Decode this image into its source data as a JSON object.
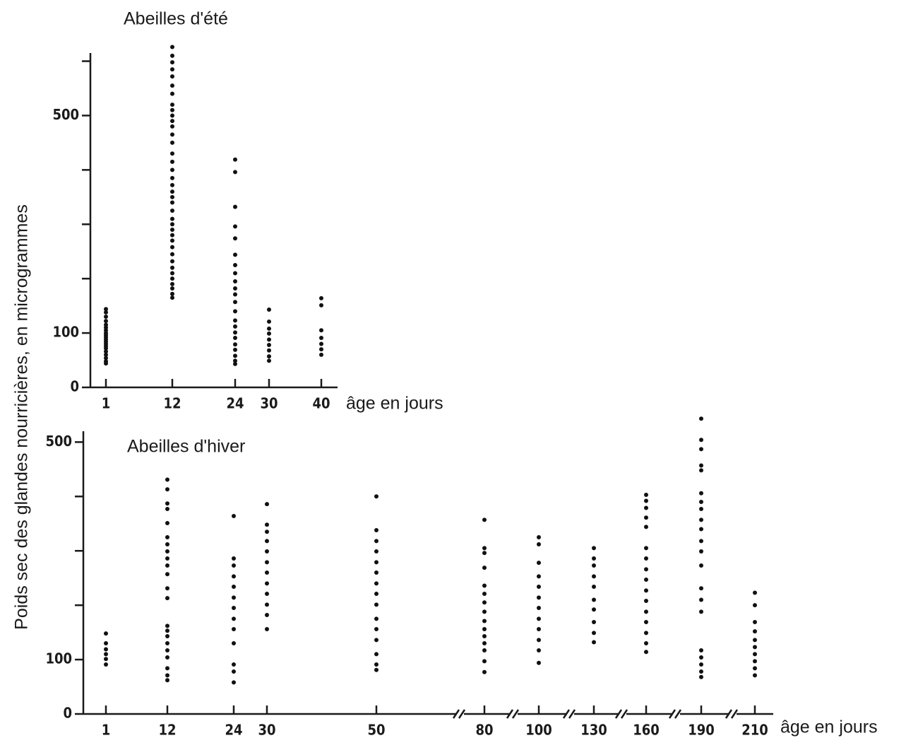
{
  "chart_data": [
    {
      "type": "scatter",
      "title": "Abeilles d'été",
      "ylabel": "Poids sec des glandes nourricières, en microgrammes",
      "xlabel": "âge en jours",
      "categories": [
        "1",
        "12",
        "24",
        "30",
        "40"
      ],
      "values": [
        [
          144,
          138,
          130,
          122,
          115,
          110,
          105,
          100,
          96,
          92,
          88,
          84,
          80,
          76,
          72,
          66,
          60,
          54,
          48,
          44
        ],
        [
          626,
          610,
          598,
          585,
          572,
          555,
          540,
          520,
          510,
          500,
          490,
          480,
          465,
          450,
          430,
          415,
          400,
          385,
          372,
          360,
          350,
          340,
          325,
          310,
          300,
          290,
          280,
          270,
          258,
          245,
          232,
          220,
          210,
          200,
          190,
          182,
          172,
          165
        ],
        [
          419,
          396,
          332,
          296,
          274,
          244,
          225,
          210,
          195,
          182,
          171,
          157,
          140,
          123,
          112,
          101,
          91,
          79,
          69,
          58,
          49,
          43
        ],
        [
          143,
          121,
          108,
          99,
          88,
          78,
          68,
          57,
          49
        ],
        [
          164,
          151,
          105,
          91,
          80,
          70,
          60
        ]
      ],
      "color": "#111111",
      "ylim": [
        0,
        615
      ],
      "yticks": [
        0,
        100,
        500
      ],
      "minor_yticks": [
        200,
        300,
        400,
        600
      ]
    },
    {
      "type": "scatter",
      "title": "Abeilles d'hiver",
      "xlabel": "âge en jours",
      "categories": [
        "1",
        "12",
        "24",
        "30",
        "50",
        "80",
        "100",
        "130",
        "160",
        "190",
        "210"
      ],
      "values": [
        [
          148,
          130,
          119,
          110,
          101,
          91
        ],
        [
          431,
          413,
          387,
          377,
          351,
          325,
          312,
          299,
          286,
          273,
          257,
          231,
          213,
          162,
          153,
          143,
          130,
          117,
          104,
          84,
          71,
          62
        ],
        [
          364,
          286,
          273,
          253,
          234,
          214,
          195,
          175,
          156,
          130,
          91,
          78,
          58
        ],
        [
          386,
          348,
          335,
          318,
          299,
          279,
          260,
          240,
          221,
          201,
          182,
          156
        ],
        [
          400,
          338,
          318,
          299,
          279,
          260,
          240,
          221,
          201,
          175,
          156,
          136,
          110,
          91,
          81
        ],
        [
          357,
          305,
          296,
          269,
          236,
          221,
          205,
          188,
          171,
          156,
          143,
          130,
          117,
          97,
          77
        ],
        [
          325,
          312,
          278,
          253,
          234,
          214,
          195,
          175,
          156,
          136,
          117,
          94
        ],
        [
          305,
          286,
          273,
          253,
          234,
          210,
          192,
          169,
          149,
          132
        ],
        [
          403,
          392,
          379,
          361,
          344,
          305,
          286,
          266,
          247,
          227,
          208,
          188,
          169,
          149,
          130,
          114
        ],
        [
          543,
          504,
          487,
          457,
          448,
          406,
          390,
          377,
          357,
          340,
          318,
          299,
          273,
          231,
          210,
          188,
          117,
          104,
          91,
          78,
          68
        ],
        [
          223,
          200,
          169,
          152,
          136,
          123,
          110,
          97,
          84,
          71
        ]
      ],
      "color": "#111111",
      "ylim": [
        0,
        520
      ],
      "yticks": [
        0,
        100,
        500
      ],
      "minor_yticks": [
        200,
        300,
        400
      ]
    }
  ]
}
